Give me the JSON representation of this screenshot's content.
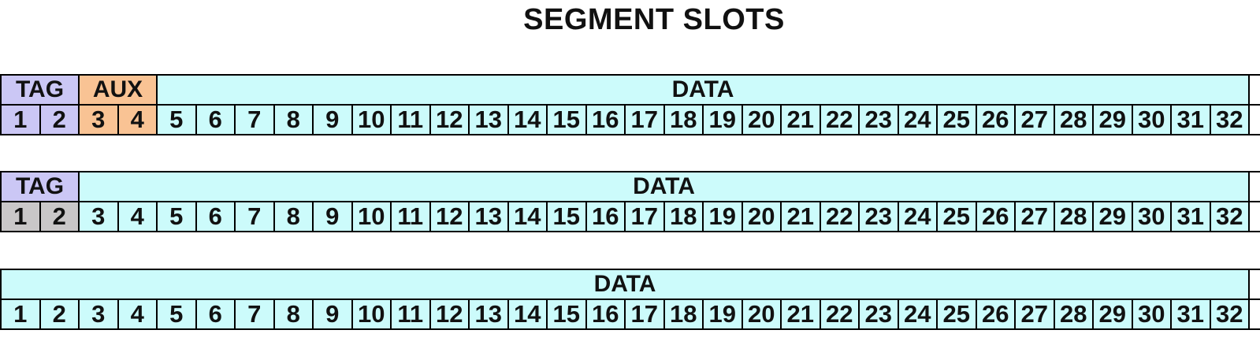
{
  "title": "SEGMENT SLOTS",
  "colors": {
    "tag": "#cbc7f5",
    "aux": "#f9c394",
    "data": "#ccfbfb",
    "reserved": "#c9c7c8",
    "border": "#000000"
  },
  "rows": [
    {
      "groups": [
        {
          "label": "TAG",
          "span": 2,
          "color": "tag"
        },
        {
          "label": "AUX",
          "span": 2,
          "color": "aux"
        },
        {
          "label": "DATA",
          "span": 28,
          "color": "data"
        }
      ],
      "slot_colors": [
        "tag",
        "tag",
        "aux",
        "aux",
        "data",
        "data",
        "data",
        "data",
        "data",
        "data",
        "data",
        "data",
        "data",
        "data",
        "data",
        "data",
        "data",
        "data",
        "data",
        "data",
        "data",
        "data",
        "data",
        "data",
        "data",
        "data",
        "data",
        "data",
        "data",
        "data",
        "data",
        "data"
      ],
      "slots": [
        "1",
        "2",
        "3",
        "4",
        "5",
        "6",
        "7",
        "8",
        "9",
        "10",
        "11",
        "12",
        "13",
        "14",
        "15",
        "16",
        "17",
        "18",
        "19",
        "20",
        "21",
        "22",
        "23",
        "24",
        "25",
        "26",
        "27",
        "28",
        "29",
        "30",
        "31",
        "32"
      ]
    },
    {
      "groups": [
        {
          "label": "TAG",
          "span": 2,
          "color": "tag"
        },
        {
          "label": "DATA",
          "span": 30,
          "color": "data"
        }
      ],
      "slot_colors": [
        "reserved",
        "reserved",
        "data",
        "data",
        "data",
        "data",
        "data",
        "data",
        "data",
        "data",
        "data",
        "data",
        "data",
        "data",
        "data",
        "data",
        "data",
        "data",
        "data",
        "data",
        "data",
        "data",
        "data",
        "data",
        "data",
        "data",
        "data",
        "data",
        "data",
        "data",
        "data",
        "data"
      ],
      "slots": [
        "1",
        "2",
        "3",
        "4",
        "5",
        "6",
        "7",
        "8",
        "9",
        "10",
        "11",
        "12",
        "13",
        "14",
        "15",
        "16",
        "17",
        "18",
        "19",
        "20",
        "21",
        "22",
        "23",
        "24",
        "25",
        "26",
        "27",
        "28",
        "29",
        "30",
        "31",
        "32"
      ]
    },
    {
      "groups": [
        {
          "label": "DATA",
          "span": 32,
          "color": "data"
        }
      ],
      "slot_colors": [
        "data",
        "data",
        "data",
        "data",
        "data",
        "data",
        "data",
        "data",
        "data",
        "data",
        "data",
        "data",
        "data",
        "data",
        "data",
        "data",
        "data",
        "data",
        "data",
        "data",
        "data",
        "data",
        "data",
        "data",
        "data",
        "data",
        "data",
        "data",
        "data",
        "data",
        "data",
        "data"
      ],
      "slots": [
        "1",
        "2",
        "3",
        "4",
        "5",
        "6",
        "7",
        "8",
        "9",
        "10",
        "11",
        "12",
        "13",
        "14",
        "15",
        "16",
        "17",
        "18",
        "19",
        "20",
        "21",
        "22",
        "23",
        "24",
        "25",
        "26",
        "27",
        "28",
        "29",
        "30",
        "31",
        "32"
      ]
    }
  ]
}
